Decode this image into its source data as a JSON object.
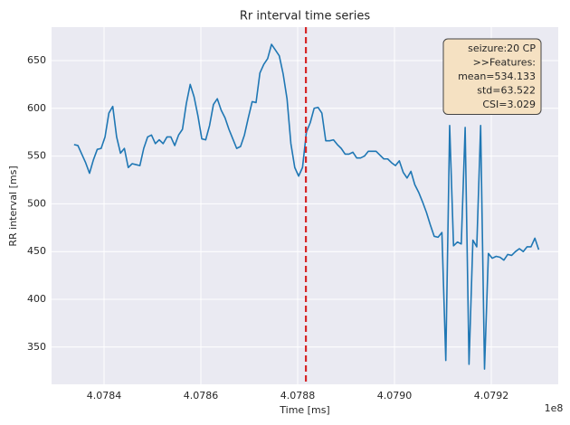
{
  "chart_data": {
    "type": "line",
    "title": "Rr interval time series",
    "x_label": "Time [ms]",
    "y_label": "RR interval [ms]",
    "x_offset_label": "1e8",
    "x": [
      4.078338,
      4.078346,
      4.078354,
      4.078362,
      4.07837,
      4.078378,
      4.078386,
      4.078394,
      4.078402,
      4.07841,
      4.078418,
      4.078426,
      4.078434,
      4.078442,
      4.07845,
      4.078458,
      4.078466,
      4.078474,
      4.078482,
      4.07849,
      4.078498,
      4.078506,
      4.078514,
      4.078522,
      4.07853,
      4.078538,
      4.078546,
      4.078554,
      4.078562,
      4.07857,
      4.078578,
      4.078586,
      4.078594,
      4.078602,
      4.07861,
      4.078618,
      4.078626,
      4.078634,
      4.078642,
      4.07865,
      4.078658,
      4.078666,
      4.078674,
      4.078682,
      4.07869,
      4.078698,
      4.078706,
      4.078714,
      4.078722,
      4.07873,
      4.078738,
      4.078746,
      4.078754,
      4.078762,
      4.07877,
      4.078778,
      4.078786,
      4.078794,
      4.078802,
      4.07881,
      4.078818,
      4.078826,
      4.078834,
      4.078842,
      4.07885,
      4.078858,
      4.078866,
      4.078874,
      4.078882,
      4.07889,
      4.078898,
      4.078906,
      4.078914,
      4.078922,
      4.07893,
      4.078938,
      4.078946,
      4.078954,
      4.078962,
      4.07897,
      4.078978,
      4.078986,
      4.078994,
      4.079002,
      4.07901,
      4.079018,
      4.079026,
      4.079034,
      4.079042,
      4.07905,
      4.079058,
      4.079066,
      4.079074,
      4.079082,
      4.07909,
      4.079098,
      4.079106,
      4.079114,
      4.079122,
      4.07913,
      4.079138,
      4.079146,
      4.079154,
      4.079162,
      4.07917,
      4.079178,
      4.079186,
      4.079194,
      4.079202,
      4.07921,
      4.079218,
      4.079226,
      4.079234,
      4.079242,
      4.07925,
      4.079258,
      4.079266,
      4.079274,
      4.079282,
      4.07929,
      4.079298
    ],
    "values": [
      562,
      561,
      552,
      543,
      532,
      546,
      557,
      558,
      570,
      595,
      602,
      570,
      553,
      558,
      538,
      542,
      541,
      540,
      558,
      570,
      572,
      563,
      567,
      563,
      570,
      570,
      561,
      572,
      578,
      605,
      625,
      612,
      592,
      568,
      567,
      582,
      604,
      610,
      598,
      590,
      578,
      568,
      558,
      560,
      572,
      590,
      607,
      606,
      637,
      646,
      652,
      667,
      661,
      655,
      636,
      610,
      563,
      538,
      529,
      538,
      575,
      585,
      600,
      601,
      595,
      566,
      566,
      567,
      562,
      558,
      552,
      552,
      554,
      548,
      548,
      550,
      555,
      555,
      555,
      551,
      547,
      547,
      543,
      540,
      545,
      533,
      527,
      534,
      520,
      512,
      502,
      491,
      478,
      466,
      465,
      470,
      336,
      582,
      456,
      460,
      458,
      580,
      332,
      462,
      455,
      582,
      327,
      448,
      443,
      445,
      444,
      441,
      447,
      446,
      450,
      453,
      450,
      455,
      455,
      464,
      452
    ],
    "color": "#1f77b4",
    "xlim": [
      4.0782916,
      4.0793383
    ],
    "ylim": [
      311,
      685
    ],
    "xticks": [
      4.0784,
      4.0786,
      4.0788,
      {
        "value": 4.079,
        "label": "4.0790"
      },
      4.0792
    ],
    "yticks": [
      350,
      400,
      450,
      500,
      550,
      600,
      650
    ],
    "grid": true,
    "vline": {
      "x": 4.078817,
      "color": "#d62728"
    },
    "annotation": [
      "seizure:20 CP",
      ">>Features:",
      "mean=534.133",
      "std=63.522",
      "CSI=3.029"
    ]
  }
}
